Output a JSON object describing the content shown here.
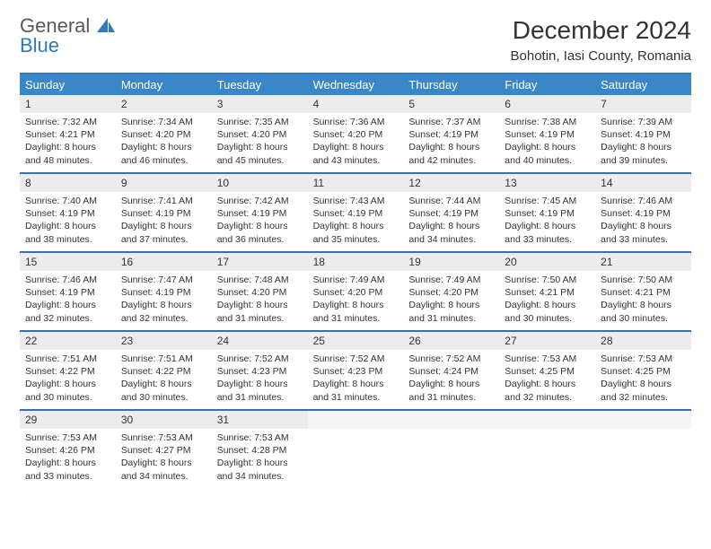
{
  "brand": {
    "text_general": "General",
    "text_blue": "Blue"
  },
  "title": "December 2024",
  "location": "Bohotin, Iasi County, Romania",
  "colors": {
    "header_bg": "#3a87c7",
    "header_text": "#ffffff",
    "border": "#3a6fa8",
    "daynum_bg": "#ececec",
    "text": "#333333",
    "brand_gray": "#595959",
    "brand_blue": "#2f7ac0",
    "page_bg": "#ffffff"
  },
  "dow": [
    "Sunday",
    "Monday",
    "Tuesday",
    "Wednesday",
    "Thursday",
    "Friday",
    "Saturday"
  ],
  "weeks": [
    [
      {
        "n": "1",
        "sr": "7:32 AM",
        "ss": "4:21 PM",
        "dl": "8 hours and 48 minutes."
      },
      {
        "n": "2",
        "sr": "7:34 AM",
        "ss": "4:20 PM",
        "dl": "8 hours and 46 minutes."
      },
      {
        "n": "3",
        "sr": "7:35 AM",
        "ss": "4:20 PM",
        "dl": "8 hours and 45 minutes."
      },
      {
        "n": "4",
        "sr": "7:36 AM",
        "ss": "4:20 PM",
        "dl": "8 hours and 43 minutes."
      },
      {
        "n": "5",
        "sr": "7:37 AM",
        "ss": "4:19 PM",
        "dl": "8 hours and 42 minutes."
      },
      {
        "n": "6",
        "sr": "7:38 AM",
        "ss": "4:19 PM",
        "dl": "8 hours and 40 minutes."
      },
      {
        "n": "7",
        "sr": "7:39 AM",
        "ss": "4:19 PM",
        "dl": "8 hours and 39 minutes."
      }
    ],
    [
      {
        "n": "8",
        "sr": "7:40 AM",
        "ss": "4:19 PM",
        "dl": "8 hours and 38 minutes."
      },
      {
        "n": "9",
        "sr": "7:41 AM",
        "ss": "4:19 PM",
        "dl": "8 hours and 37 minutes."
      },
      {
        "n": "10",
        "sr": "7:42 AM",
        "ss": "4:19 PM",
        "dl": "8 hours and 36 minutes."
      },
      {
        "n": "11",
        "sr": "7:43 AM",
        "ss": "4:19 PM",
        "dl": "8 hours and 35 minutes."
      },
      {
        "n": "12",
        "sr": "7:44 AM",
        "ss": "4:19 PM",
        "dl": "8 hours and 34 minutes."
      },
      {
        "n": "13",
        "sr": "7:45 AM",
        "ss": "4:19 PM",
        "dl": "8 hours and 33 minutes."
      },
      {
        "n": "14",
        "sr": "7:46 AM",
        "ss": "4:19 PM",
        "dl": "8 hours and 33 minutes."
      }
    ],
    [
      {
        "n": "15",
        "sr": "7:46 AM",
        "ss": "4:19 PM",
        "dl": "8 hours and 32 minutes."
      },
      {
        "n": "16",
        "sr": "7:47 AM",
        "ss": "4:19 PM",
        "dl": "8 hours and 32 minutes."
      },
      {
        "n": "17",
        "sr": "7:48 AM",
        "ss": "4:20 PM",
        "dl": "8 hours and 31 minutes."
      },
      {
        "n": "18",
        "sr": "7:49 AM",
        "ss": "4:20 PM",
        "dl": "8 hours and 31 minutes."
      },
      {
        "n": "19",
        "sr": "7:49 AM",
        "ss": "4:20 PM",
        "dl": "8 hours and 31 minutes."
      },
      {
        "n": "20",
        "sr": "7:50 AM",
        "ss": "4:21 PM",
        "dl": "8 hours and 30 minutes."
      },
      {
        "n": "21",
        "sr": "7:50 AM",
        "ss": "4:21 PM",
        "dl": "8 hours and 30 minutes."
      }
    ],
    [
      {
        "n": "22",
        "sr": "7:51 AM",
        "ss": "4:22 PM",
        "dl": "8 hours and 30 minutes."
      },
      {
        "n": "23",
        "sr": "7:51 AM",
        "ss": "4:22 PM",
        "dl": "8 hours and 30 minutes."
      },
      {
        "n": "24",
        "sr": "7:52 AM",
        "ss": "4:23 PM",
        "dl": "8 hours and 31 minutes."
      },
      {
        "n": "25",
        "sr": "7:52 AM",
        "ss": "4:23 PM",
        "dl": "8 hours and 31 minutes."
      },
      {
        "n": "26",
        "sr": "7:52 AM",
        "ss": "4:24 PM",
        "dl": "8 hours and 31 minutes."
      },
      {
        "n": "27",
        "sr": "7:53 AM",
        "ss": "4:25 PM",
        "dl": "8 hours and 32 minutes."
      },
      {
        "n": "28",
        "sr": "7:53 AM",
        "ss": "4:25 PM",
        "dl": "8 hours and 32 minutes."
      }
    ],
    [
      {
        "n": "29",
        "sr": "7:53 AM",
        "ss": "4:26 PM",
        "dl": "8 hours and 33 minutes."
      },
      {
        "n": "30",
        "sr": "7:53 AM",
        "ss": "4:27 PM",
        "dl": "8 hours and 34 minutes."
      },
      {
        "n": "31",
        "sr": "7:53 AM",
        "ss": "4:28 PM",
        "dl": "8 hours and 34 minutes."
      },
      null,
      null,
      null,
      null
    ]
  ],
  "labels": {
    "sunrise": "Sunrise:",
    "sunset": "Sunset:",
    "daylight": "Daylight:"
  }
}
